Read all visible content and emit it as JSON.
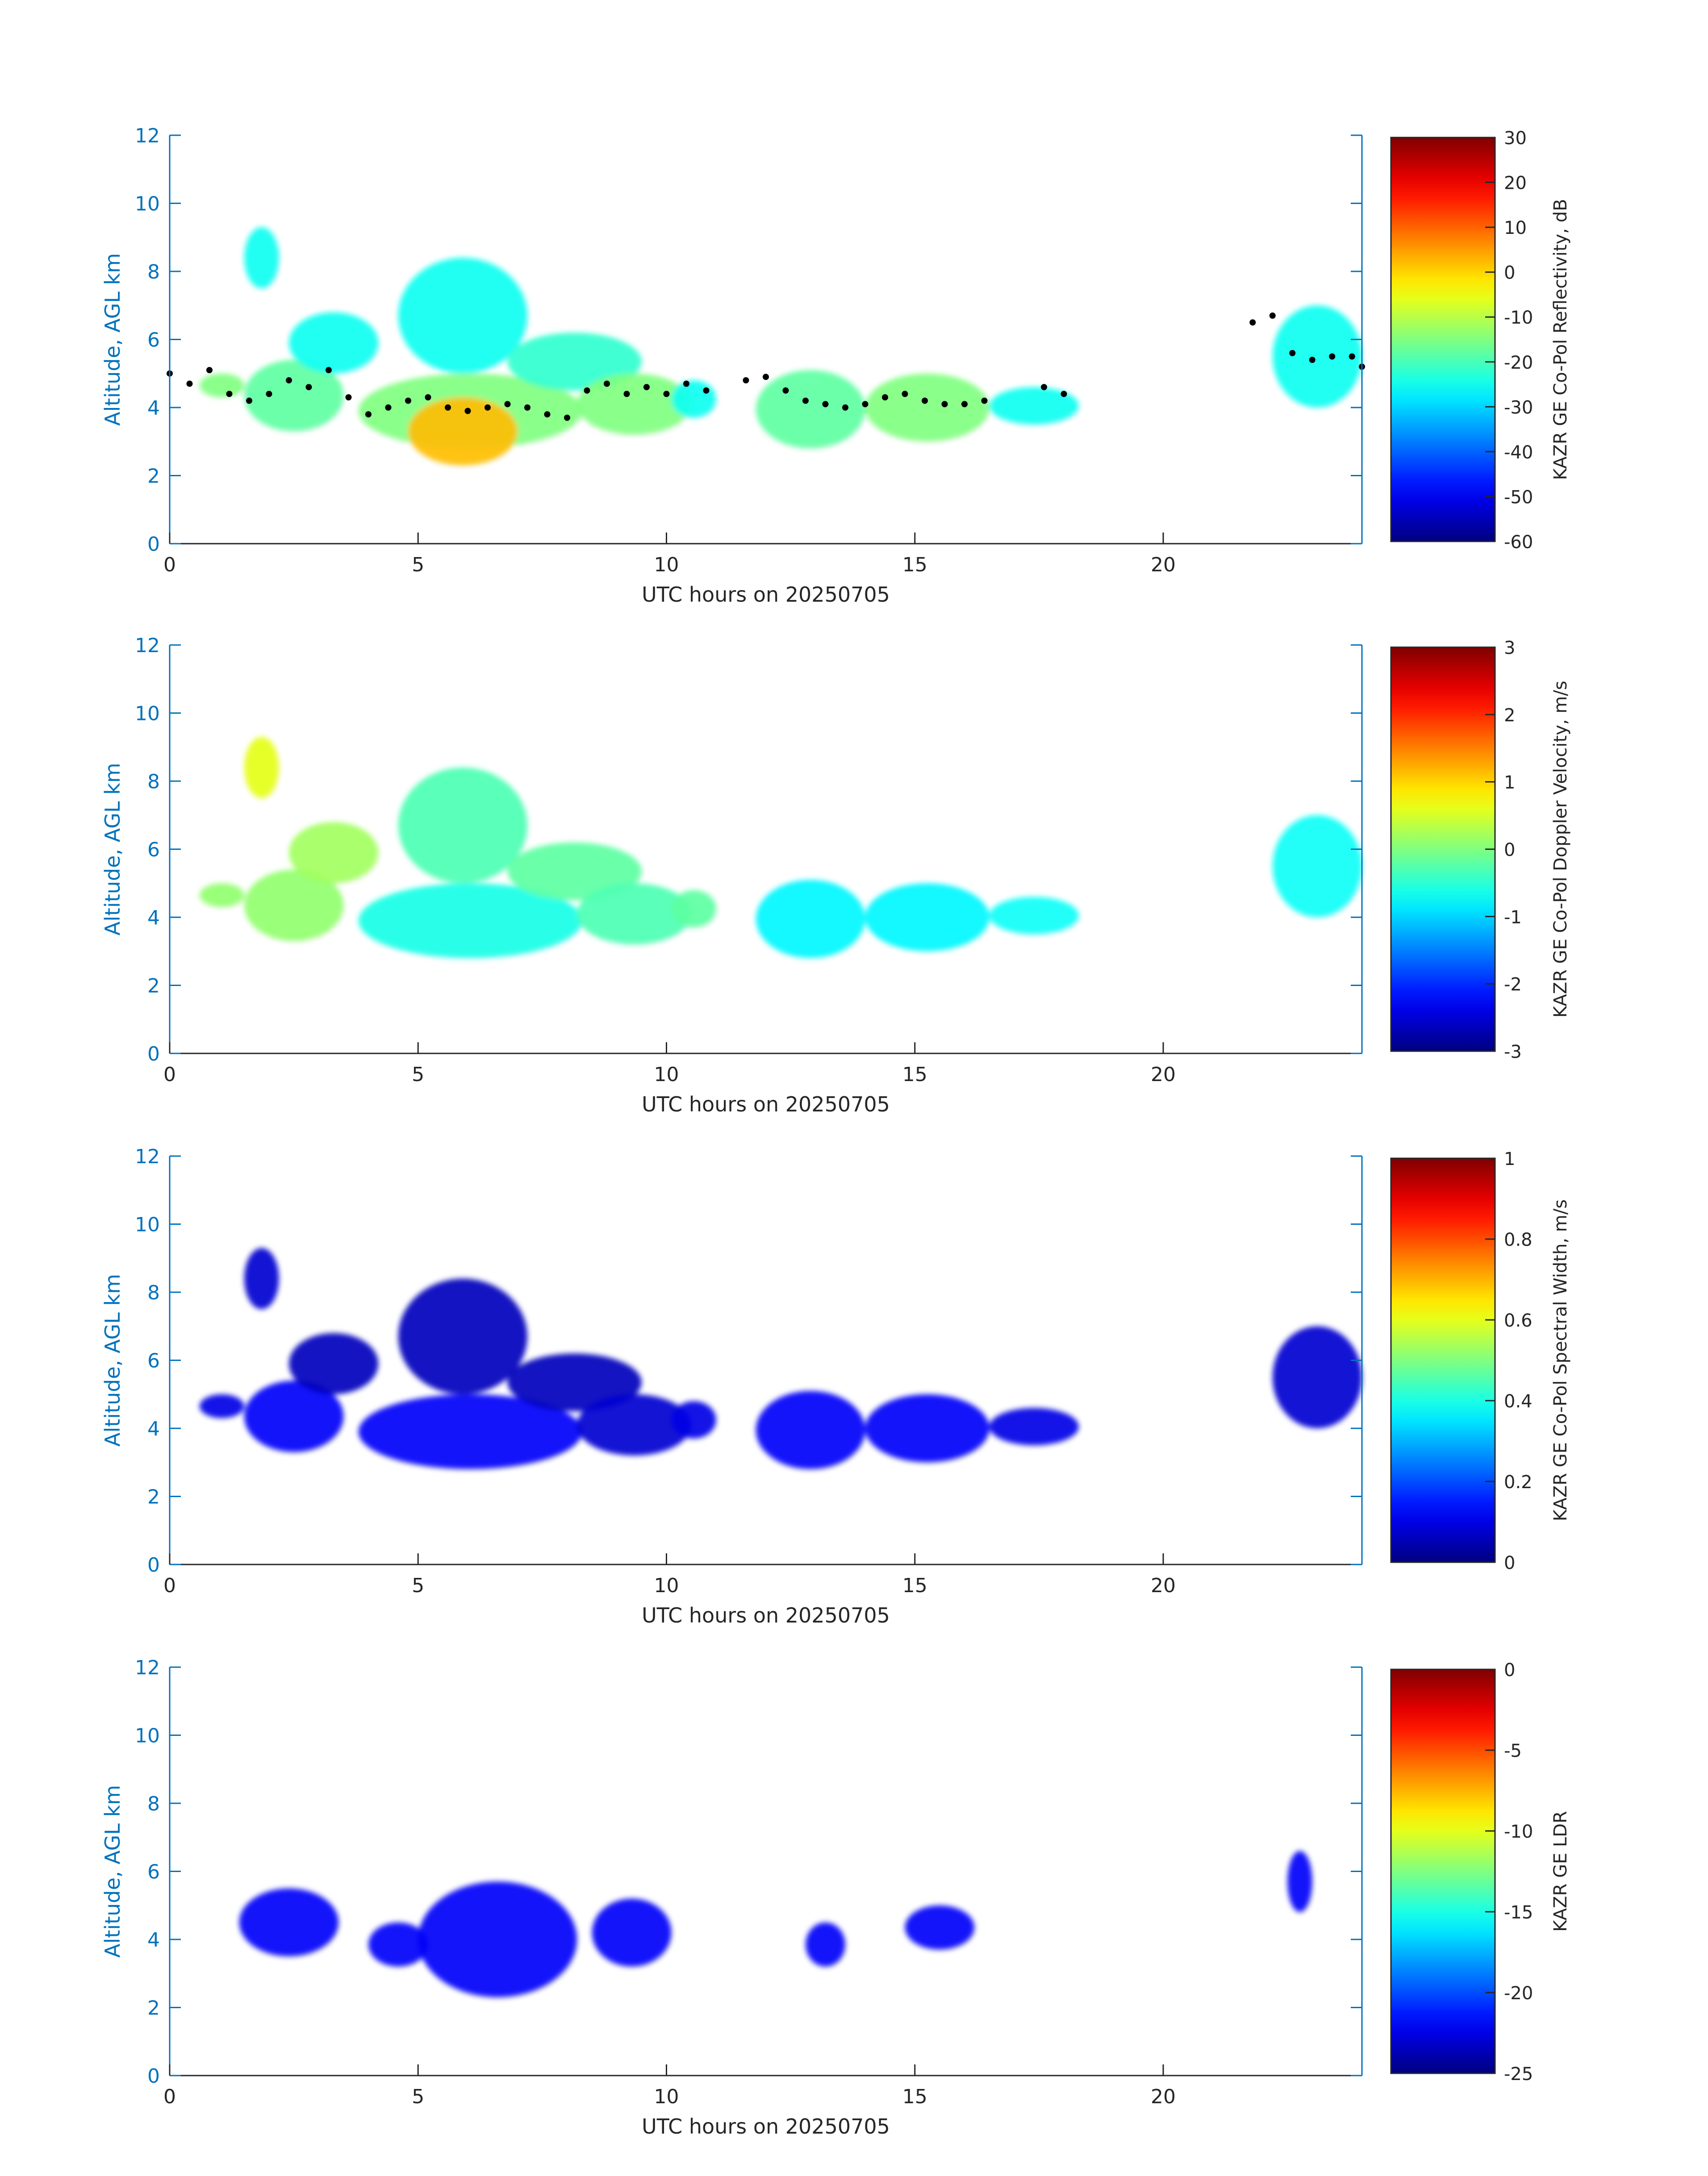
{
  "colors": {
    "axis": "#0072bd",
    "text": "#262626",
    "overlay": "#000000",
    "background": "#ffffff"
  },
  "chart_data": [
    {
      "type": "heatmap",
      "xlabel": "UTC hours on 20250705",
      "ylabel": "Altitude, AGL km",
      "xlim": [
        0,
        24
      ],
      "ylim": [
        0,
        12
      ],
      "xticks": [
        "0",
        "5",
        "10",
        "15",
        "20"
      ],
      "yticks": [
        "0",
        "2",
        "4",
        "6",
        "8",
        "10",
        "12"
      ],
      "grid": false,
      "colorbar": {
        "label": "KAZR GE Co-Pol Reflectivity, dB",
        "min": -60,
        "max": 30,
        "ticks": [
          "-60",
          "-50",
          "-40",
          "-30",
          "-20",
          "-10",
          "0",
          "10",
          "20",
          "30"
        ],
        "colormap": "jet"
      },
      "regions": [
        {
          "x": [
            0.6,
            1.5
          ],
          "y": [
            4.3,
            5.0
          ],
          "value": -15
        },
        {
          "x": [
            1.5,
            3.5
          ],
          "y": [
            3.3,
            5.4
          ],
          "value": -18
        },
        {
          "x": [
            1.5,
            2.2
          ],
          "y": [
            7.5,
            9.3
          ],
          "value": -25
        },
        {
          "x": [
            2.4,
            4.2
          ],
          "y": [
            5.0,
            6.8
          ],
          "value": -25
        },
        {
          "x": [
            3.8,
            8.3
          ],
          "y": [
            2.8,
            5.0
          ],
          "value": -15
        },
        {
          "x": [
            4.8,
            7.0
          ],
          "y": [
            2.3,
            4.3
          ],
          "value": 2
        },
        {
          "x": [
            4.6,
            7.2
          ],
          "y": [
            5.0,
            8.4
          ],
          "value": -25
        },
        {
          "x": [
            6.8,
            9.5
          ],
          "y": [
            4.5,
            6.2
          ],
          "value": -22
        },
        {
          "x": [
            8.2,
            10.5
          ],
          "y": [
            3.2,
            5.0
          ],
          "value": -15
        },
        {
          "x": [
            10.1,
            11.0
          ],
          "y": [
            3.7,
            4.8
          ],
          "value": -25
        },
        {
          "x": [
            11.8,
            14.0
          ],
          "y": [
            2.8,
            5.1
          ],
          "value": -18
        },
        {
          "x": [
            14.0,
            16.5
          ],
          "y": [
            3.0,
            5.0
          ],
          "value": -15
        },
        {
          "x": [
            16.5,
            18.3
          ],
          "y": [
            3.5,
            4.6
          ],
          "value": -25
        },
        {
          "x": [
            22.2,
            24.0
          ],
          "y": [
            4.0,
            7.0
          ],
          "value": -25
        }
      ],
      "overlay": {
        "style": "black dots",
        "x": [
          0.0,
          0.4,
          0.8,
          1.2,
          1.6,
          2.0,
          2.4,
          2.8,
          3.2,
          3.6,
          4.0,
          4.4,
          4.8,
          5.2,
          5.6,
          6.0,
          6.4,
          6.8,
          7.2,
          7.6,
          8.0,
          8.4,
          8.8,
          9.2,
          9.6,
          10.0,
          10.4,
          10.8,
          11.6,
          12.0,
          12.4,
          12.8,
          13.2,
          13.6,
          14.0,
          14.4,
          14.8,
          15.2,
          15.6,
          16.0,
          16.4,
          17.6,
          18.0,
          21.8,
          22.2,
          22.6,
          23.0,
          23.4,
          23.8,
          24.0
        ],
        "y": [
          5.0,
          4.7,
          5.1,
          4.4,
          4.2,
          4.4,
          4.8,
          4.6,
          5.1,
          4.3,
          3.8,
          4.0,
          4.2,
          4.3,
          4.0,
          3.9,
          4.0,
          4.1,
          4.0,
          3.8,
          3.7,
          4.5,
          4.7,
          4.4,
          4.6,
          4.4,
          4.7,
          4.5,
          4.8,
          4.9,
          4.5,
          4.2,
          4.1,
          4.0,
          4.1,
          4.3,
          4.4,
          4.2,
          4.1,
          4.1,
          4.2,
          4.6,
          4.4,
          6.5,
          6.7,
          5.6,
          5.4,
          5.5,
          5.5,
          5.2
        ]
      }
    },
    {
      "type": "heatmap",
      "xlabel": "UTC hours on 20250705",
      "ylabel": "Altitude, AGL km",
      "xlim": [
        0,
        24
      ],
      "ylim": [
        0,
        12
      ],
      "xticks": [
        "0",
        "5",
        "10",
        "15",
        "20"
      ],
      "yticks": [
        "0",
        "2",
        "4",
        "6",
        "8",
        "10",
        "12"
      ],
      "grid": false,
      "colorbar": {
        "label": "KAZR GE Co-Pol Doppler Velocity, m/s",
        "min": -3,
        "max": 3,
        "ticks": [
          "-3",
          "-2",
          "-1",
          "0",
          "1",
          "2",
          "3"
        ],
        "colormap": "jet"
      },
      "regions": [
        {
          "x": [
            0.6,
            1.5
          ],
          "y": [
            4.3,
            5.0
          ],
          "value": 0.1
        },
        {
          "x": [
            1.5,
            3.5
          ],
          "y": [
            3.3,
            5.4
          ],
          "value": 0.1
        },
        {
          "x": [
            1.5,
            2.2
          ],
          "y": [
            7.5,
            9.3
          ],
          "value": 0.6
        },
        {
          "x": [
            2.4,
            4.2
          ],
          "y": [
            5.0,
            6.8
          ],
          "value": 0.2
        },
        {
          "x": [
            3.8,
            8.3
          ],
          "y": [
            2.8,
            5.0
          ],
          "value": -0.6
        },
        {
          "x": [
            4.6,
            7.2
          ],
          "y": [
            5.0,
            8.4
          ],
          "value": -0.3
        },
        {
          "x": [
            6.8,
            9.5
          ],
          "y": [
            4.5,
            6.2
          ],
          "value": -0.2
        },
        {
          "x": [
            8.2,
            10.5
          ],
          "y": [
            3.2,
            5.0
          ],
          "value": -0.3
        },
        {
          "x": [
            10.1,
            11.0
          ],
          "y": [
            3.7,
            4.8
          ],
          "value": -0.2
        },
        {
          "x": [
            11.8,
            14.0
          ],
          "y": [
            2.8,
            5.1
          ],
          "value": -0.8
        },
        {
          "x": [
            14.0,
            16.5
          ],
          "y": [
            3.0,
            5.0
          ],
          "value": -0.8
        },
        {
          "x": [
            16.5,
            18.3
          ],
          "y": [
            3.5,
            4.6
          ],
          "value": -0.7
        },
        {
          "x": [
            22.2,
            24.0
          ],
          "y": [
            4.0,
            7.0
          ],
          "value": -0.7
        }
      ]
    },
    {
      "type": "heatmap",
      "xlabel": "UTC hours on 20250705",
      "ylabel": "Altitude, AGL km",
      "xlim": [
        0,
        24
      ],
      "ylim": [
        0,
        12
      ],
      "xticks": [
        "0",
        "5",
        "10",
        "15",
        "20"
      ],
      "yticks": [
        "0",
        "2",
        "4",
        "6",
        "8",
        "10",
        "12"
      ],
      "grid": false,
      "colorbar": {
        "label": "KAZR GE Co-Pol Spectral Width, m/s",
        "min": 0,
        "max": 1,
        "ticks": [
          "0",
          "0.2",
          "0.4",
          "0.6",
          "0.8",
          "1"
        ],
        "colormap": "jet"
      },
      "regions": [
        {
          "x": [
            0.6,
            1.5
          ],
          "y": [
            4.3,
            5.0
          ],
          "value": 0.1
        },
        {
          "x": [
            1.5,
            3.5
          ],
          "y": [
            3.3,
            5.4
          ],
          "value": 0.12
        },
        {
          "x": [
            1.5,
            2.2
          ],
          "y": [
            7.5,
            9.3
          ],
          "value": 0.08
        },
        {
          "x": [
            2.4,
            4.2
          ],
          "y": [
            5.0,
            6.8
          ],
          "value": 0.06
        },
        {
          "x": [
            3.8,
            8.3
          ],
          "y": [
            2.8,
            5.0
          ],
          "value": 0.12
        },
        {
          "x": [
            4.6,
            7.2
          ],
          "y": [
            5.0,
            8.4
          ],
          "value": 0.06
        },
        {
          "x": [
            6.8,
            9.5
          ],
          "y": [
            4.5,
            6.2
          ],
          "value": 0.06
        },
        {
          "x": [
            8.2,
            10.5
          ],
          "y": [
            3.2,
            5.0
          ],
          "value": 0.08
        },
        {
          "x": [
            10.1,
            11.0
          ],
          "y": [
            3.7,
            4.8
          ],
          "value": 0.1
        },
        {
          "x": [
            11.8,
            14.0
          ],
          "y": [
            2.8,
            5.1
          ],
          "value": 0.12
        },
        {
          "x": [
            14.0,
            16.5
          ],
          "y": [
            3.0,
            5.0
          ],
          "value": 0.12
        },
        {
          "x": [
            16.5,
            18.3
          ],
          "y": [
            3.5,
            4.6
          ],
          "value": 0.1
        },
        {
          "x": [
            22.2,
            24.0
          ],
          "y": [
            4.0,
            7.0
          ],
          "value": 0.08
        }
      ]
    },
    {
      "type": "heatmap",
      "xlabel": "UTC hours on 20250705",
      "ylabel": "Altitude, AGL km",
      "xlim": [
        0,
        24
      ],
      "ylim": [
        0,
        12
      ],
      "xticks": [
        "0",
        "5",
        "10",
        "15",
        "20"
      ],
      "yticks": [
        "0",
        "2",
        "4",
        "6",
        "8",
        "10",
        "12"
      ],
      "grid": false,
      "colorbar": {
        "label": "KAZR GE LDR",
        "min": -25,
        "max": 0,
        "ticks": [
          "-25",
          "-20",
          "-15",
          "-10",
          "-5",
          "0"
        ],
        "colormap": "jet"
      },
      "regions": [
        {
          "x": [
            1.4,
            3.4
          ],
          "y": [
            3.5,
            5.5
          ],
          "value": -22
        },
        {
          "x": [
            4.0,
            5.2
          ],
          "y": [
            3.2,
            4.5
          ],
          "value": -22
        },
        {
          "x": [
            5.0,
            8.2
          ],
          "y": [
            2.3,
            5.7
          ],
          "value": -22
        },
        {
          "x": [
            8.5,
            10.1
          ],
          "y": [
            3.2,
            5.2
          ],
          "value": -22
        },
        {
          "x": [
            12.8,
            13.6
          ],
          "y": [
            3.2,
            4.5
          ],
          "value": -22
        },
        {
          "x": [
            14.8,
            16.2
          ],
          "y": [
            3.7,
            5.0
          ],
          "value": -22
        },
        {
          "x": [
            22.5,
            23.0
          ],
          "y": [
            4.8,
            6.6
          ],
          "value": -22
        }
      ]
    }
  ]
}
